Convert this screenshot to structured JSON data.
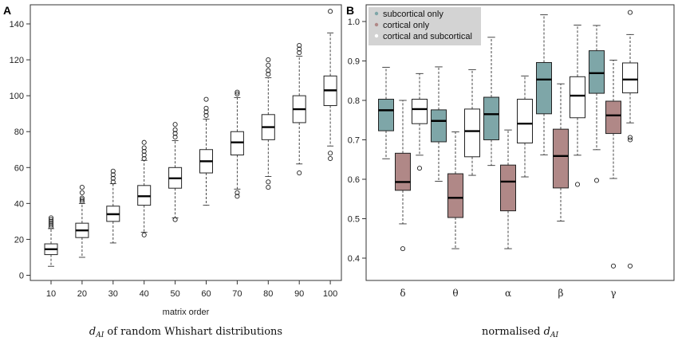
{
  "chart_data": [
    {
      "panel_label": "A",
      "type": "box",
      "xlabel": "matrix order",
      "caption": {
        "italic": "d",
        "sub": "AI",
        "rest": " of random Whishart distributions"
      },
      "ylim": [
        0,
        150
      ],
      "yticks": [
        "0",
        "20",
        "40",
        "60",
        "80",
        "100",
        "120",
        "140"
      ],
      "categories": [
        "10",
        "20",
        "30",
        "40",
        "50",
        "60",
        "70",
        "80",
        "90",
        "100"
      ],
      "boxes": [
        {
          "q1": 11.5,
          "median": 14.5,
          "q3": 17.5,
          "wlo": 5,
          "whi": 26,
          "outliers": [
            27,
            28,
            29,
            30,
            31,
            32
          ]
        },
        {
          "q1": 21,
          "median": 25,
          "q3": 29,
          "wlo": 10,
          "whi": 40,
          "outliers": [
            41,
            42,
            43,
            46,
            49
          ]
        },
        {
          "q1": 30,
          "median": 34,
          "q3": 38.5,
          "wlo": 18,
          "whi": 51,
          "outliers": [
            52,
            54,
            56,
            58
          ]
        },
        {
          "q1": 39,
          "median": 44,
          "q3": 50,
          "wlo": 24,
          "whi": 64,
          "outliers": [
            22.5,
            65,
            67,
            69,
            71,
            74
          ]
        },
        {
          "q1": 48.5,
          "median": 54,
          "q3": 60,
          "wlo": 32,
          "whi": 75,
          "outliers": [
            31,
            77,
            79,
            81,
            84
          ]
        },
        {
          "q1": 57,
          "median": 63.5,
          "q3": 70,
          "wlo": 39,
          "whi": 87,
          "outliers": [
            89,
            91,
            93,
            98
          ]
        },
        {
          "q1": 67,
          "median": 74,
          "q3": 80,
          "wlo": 48,
          "whi": 99,
          "outliers": [
            44,
            46,
            101,
            102
          ]
        },
        {
          "q1": 75.5,
          "median": 82.5,
          "q3": 89.5,
          "wlo": 55,
          "whi": 110,
          "outliers": [
            49,
            52,
            112,
            114,
            117,
            120
          ]
        },
        {
          "q1": 85,
          "median": 92.5,
          "q3": 100,
          "wlo": 62,
          "whi": 122,
          "outliers": [
            57,
            124,
            126,
            128
          ]
        },
        {
          "q1": 94.5,
          "median": 103,
          "q3": 111,
          "wlo": 72,
          "whi": 135,
          "outliers": [
            65,
            68,
            147
          ]
        }
      ]
    },
    {
      "panel_label": "B",
      "type": "box",
      "xlabel": "",
      "caption": {
        "italic": "d",
        "sub": "AI",
        "pre": "normalised "
      },
      "ylim": [
        0.36,
        1.02
      ],
      "yticks": [
        "0.4",
        "0.5",
        "0.6",
        "0.7",
        "0.8",
        "0.9",
        "1.0"
      ],
      "categories": [
        "δ",
        "θ",
        "α",
        "β",
        "γ"
      ],
      "legend": {
        "position": "top-left",
        "entries": [
          {
            "label": "subcortical only",
            "color": "#7ea6a8"
          },
          {
            "label": "cortical only",
            "color": "#b08887"
          },
          {
            "label": "cortical and subcortical",
            "color": "#ffffff"
          }
        ]
      },
      "series": [
        {
          "name": "subcortical only",
          "color": "#7ea6a8",
          "values": [
            {
              "q1": 0.723,
              "median": 0.775,
              "q3": 0.803,
              "wlo": 0.652,
              "whi": 0.884,
              "outliers": []
            },
            {
              "q1": 0.695,
              "median": 0.748,
              "q3": 0.776,
              "wlo": 0.595,
              "whi": 0.885,
              "outliers": []
            },
            {
              "q1": 0.7,
              "median": 0.765,
              "q3": 0.808,
              "wlo": 0.635,
              "whi": 0.96,
              "outliers": []
            },
            {
              "q1": 0.766,
              "median": 0.853,
              "q3": 0.896,
              "wlo": 0.662,
              "whi": 1.017,
              "outliers": []
            },
            {
              "q1": 0.818,
              "median": 0.869,
              "q3": 0.926,
              "wlo": 0.675,
              "whi": 0.99,
              "outliers": [
                0.597
              ]
            }
          ]
        },
        {
          "name": "cortical only",
          "color": "#b08887",
          "values": [
            {
              "q1": 0.572,
              "median": 0.593,
              "q3": 0.666,
              "wlo": 0.487,
              "whi": 0.8,
              "outliers": [
                0.424
              ]
            },
            {
              "q1": 0.503,
              "median": 0.553,
              "q3": 0.614,
              "wlo": 0.424,
              "whi": 0.72,
              "outliers": []
            },
            {
              "q1": 0.52,
              "median": 0.594,
              "q3": 0.636,
              "wlo": 0.424,
              "whi": 0.725,
              "outliers": []
            },
            {
              "q1": 0.578,
              "median": 0.659,
              "q3": 0.727,
              "wlo": 0.494,
              "whi": 0.842,
              "outliers": []
            },
            {
              "q1": 0.716,
              "median": 0.762,
              "q3": 0.798,
              "wlo": 0.602,
              "whi": 0.902,
              "outliers": [
                0.38
              ]
            }
          ]
        },
        {
          "name": "cortical and subcortical",
          "color": "#ffffff",
          "values": [
            {
              "q1": 0.741,
              "median": 0.778,
              "q3": 0.803,
              "wlo": 0.661,
              "whi": 0.868,
              "outliers": [
                0.628
              ]
            },
            {
              "q1": 0.657,
              "median": 0.722,
              "q3": 0.778,
              "wlo": 0.61,
              "whi": 0.878,
              "outliers": []
            },
            {
              "q1": 0.692,
              "median": 0.741,
              "q3": 0.803,
              "wlo": 0.606,
              "whi": 0.862,
              "outliers": []
            },
            {
              "q1": 0.756,
              "median": 0.812,
              "q3": 0.86,
              "wlo": 0.661,
              "whi": 0.991,
              "outliers": [
                0.587
              ]
            },
            {
              "q1": 0.819,
              "median": 0.853,
              "q3": 0.895,
              "wlo": 0.743,
              "whi": 0.967,
              "outliers": [
                0.7,
                0.706,
                0.38,
                1.023
              ]
            }
          ]
        }
      ]
    }
  ]
}
